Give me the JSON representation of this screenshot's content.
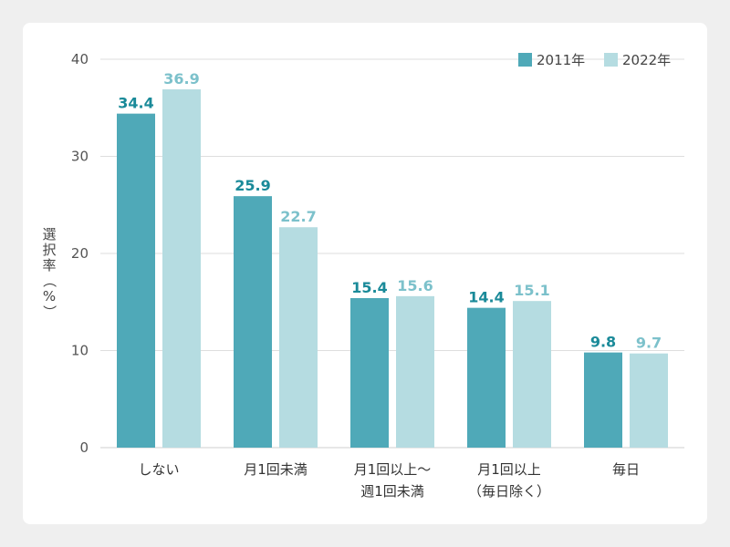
{
  "chart_data": {
    "type": "bar",
    "ylabel_chars": [
      "選",
      "択",
      "率",
      "（",
      "%",
      "）"
    ],
    "ylim": [
      0,
      40
    ],
    "yticks": [
      "0",
      "10",
      "20",
      "30",
      "40"
    ],
    "grid": true,
    "legend_position": "top-right",
    "categories": [
      [
        "しない"
      ],
      [
        "月1回未満"
      ],
      [
        "月1回以上～",
        "週1回未満"
      ],
      [
        "月1回以上",
        "（毎日除く）"
      ],
      [
        "毎日"
      ]
    ],
    "series": [
      {
        "name": "2011年",
        "color": "#4fa9b8",
        "label_color": "#1a8a99",
        "values": [
          34.4,
          25.9,
          15.4,
          14.4,
          9.8
        ]
      },
      {
        "name": "2022年",
        "color": "#b5dce1",
        "label_color": "#7cc1cb",
        "values": [
          36.9,
          22.7,
          15.6,
          15.1,
          9.7
        ]
      }
    ]
  }
}
